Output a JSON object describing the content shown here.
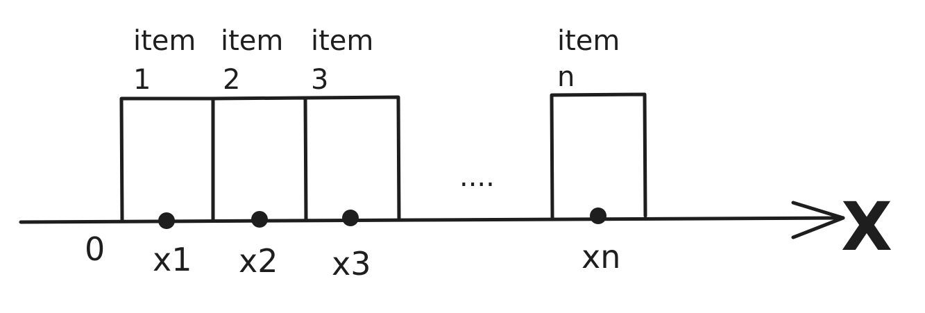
{
  "diagram": {
    "origin_label": "0",
    "axis_label": "X",
    "ellipsis": "....",
    "items": [
      {
        "word": "item",
        "index": "1",
        "position_label": "x1"
      },
      {
        "word": "item",
        "index": "2",
        "position_label": "x2"
      },
      {
        "word": "item",
        "index": "3",
        "position_label": "x3"
      },
      {
        "word": "item",
        "index": "n",
        "position_label": "xn"
      }
    ],
    "colors": {
      "ink": "#1e1e1e",
      "background": "#ffffff"
    }
  }
}
